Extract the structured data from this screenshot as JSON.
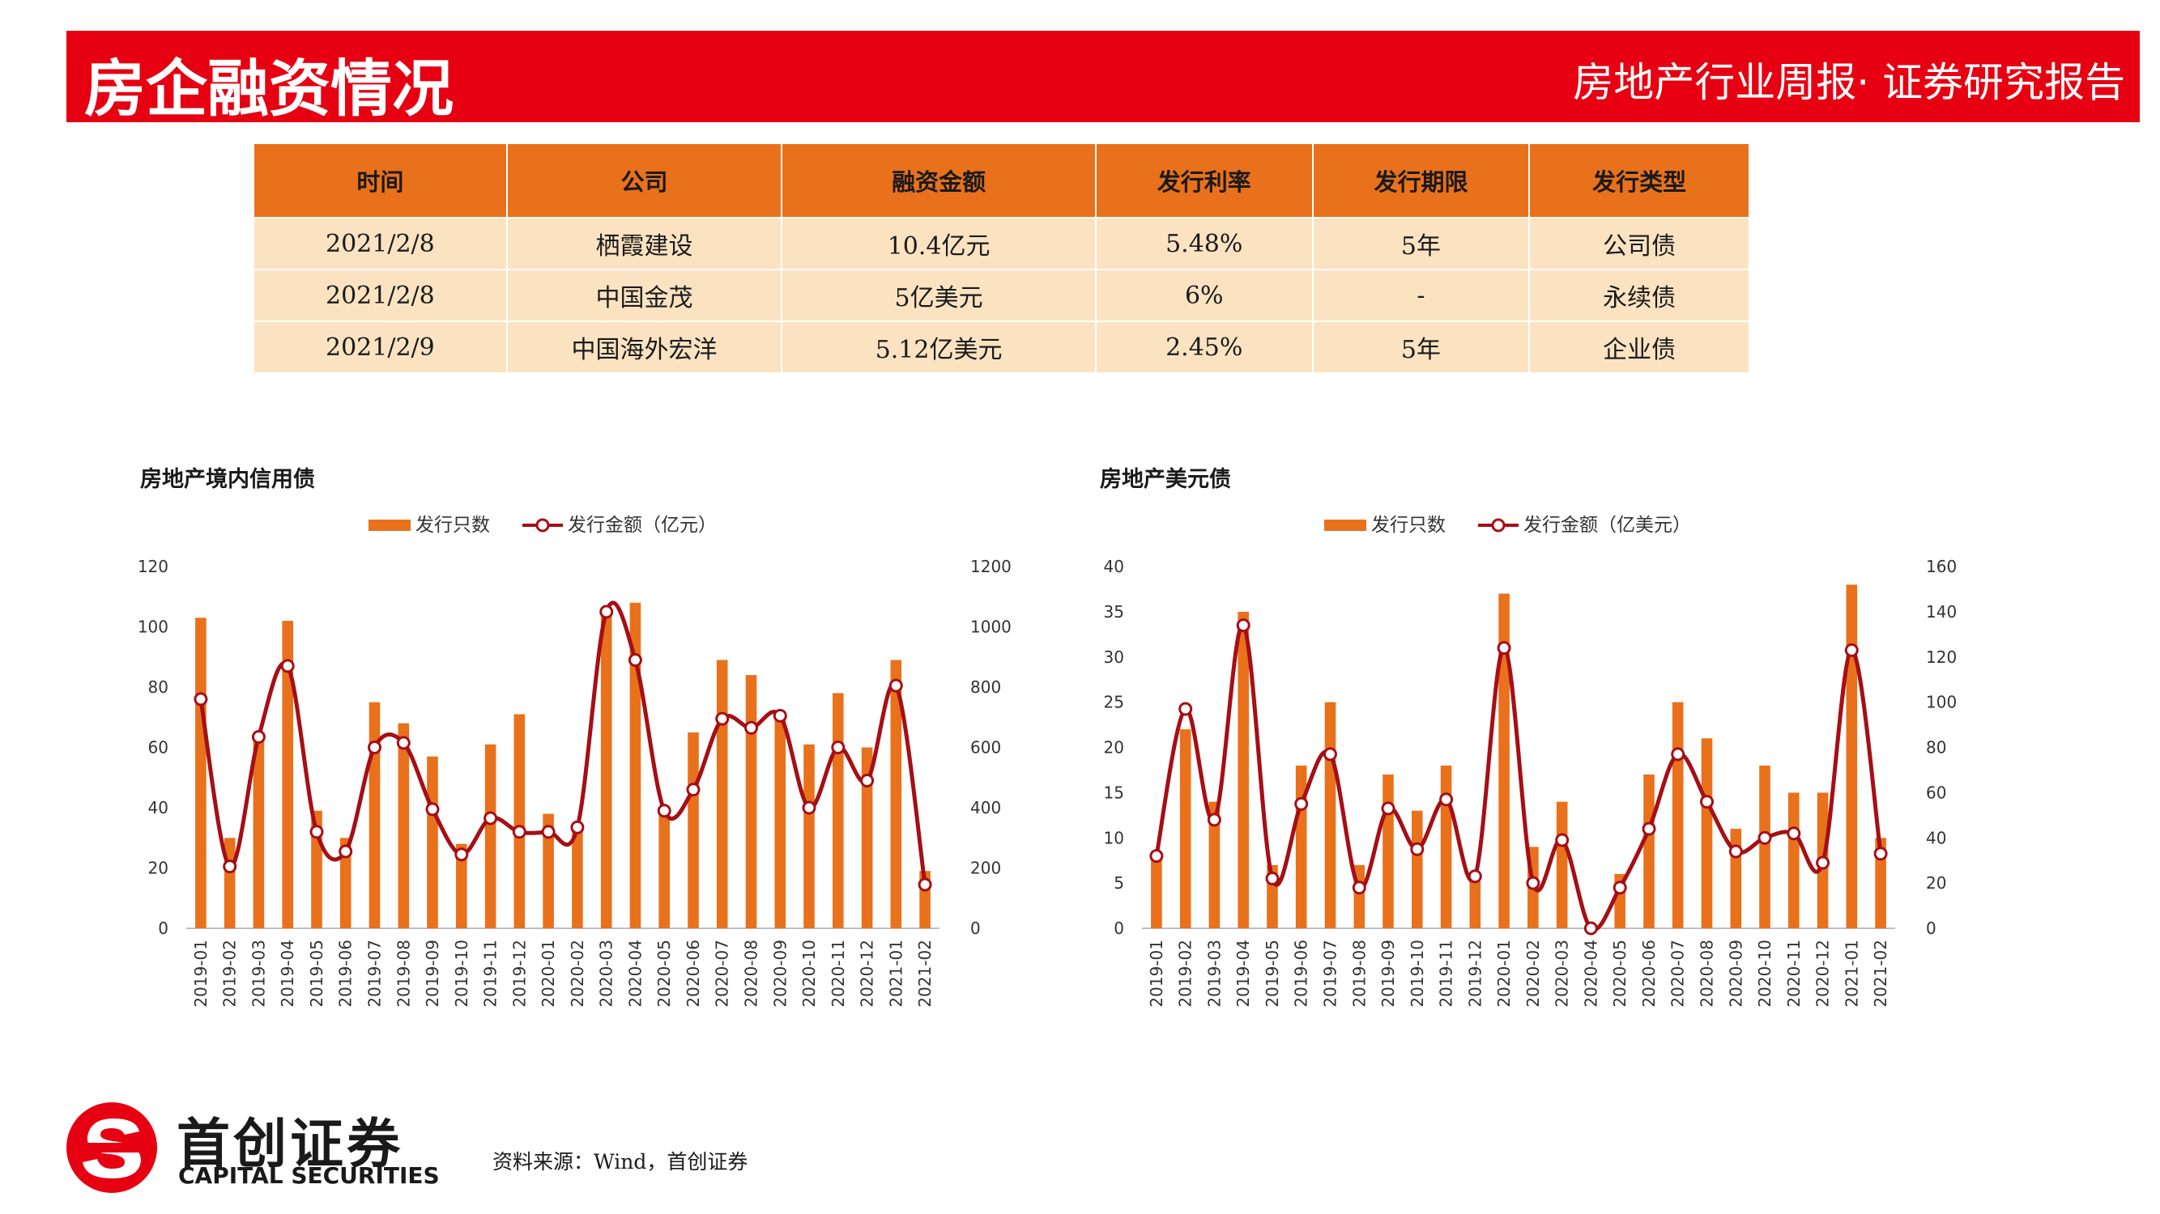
{
  "header": {
    "title": "房企融资情况",
    "subtitle": "房地产行业周报· 证券研究报告",
    "colors": {
      "banner": "#e60012"
    }
  },
  "table": {
    "columns": [
      "时间",
      "公司",
      "融资金额",
      "发行利率",
      "发行期限",
      "发行类型"
    ],
    "rows": [
      [
        "2021/2/8",
        "栖霞建设",
        "10.4亿元",
        "5.48%",
        "5年",
        "公司债"
      ],
      [
        "2021/2/8",
        "中国金茂",
        "5亿美元",
        "6%",
        "-",
        "永续债"
      ],
      [
        "2021/2/9",
        "中国海外宏洋",
        "5.12亿美元",
        "2.45%",
        "5年",
        "企业债"
      ]
    ],
    "colors": {
      "header": "#e9711c",
      "row": "#fbe3c1"
    }
  },
  "chart_data": [
    {
      "type": "bar+line",
      "title": "房地产境内信用债",
      "categories": [
        "2019-01",
        "2019-02",
        "2019-03",
        "2019-04",
        "2019-05",
        "2019-06",
        "2019-07",
        "2019-08",
        "2019-09",
        "2019-10",
        "2019-11",
        "2019-12",
        "2020-01",
        "2020-02",
        "2020-03",
        "2020-04",
        "2020-05",
        "2020-06",
        "2020-07",
        "2020-08",
        "2020-09",
        "2020-10",
        "2020-11",
        "2020-12",
        "2021-01",
        "2021-02"
      ],
      "series": [
        {
          "name": "发行只数",
          "type": "bar",
          "axis": "left",
          "color": "#e9711c",
          "values": [
            103,
            30,
            64,
            102,
            39,
            30,
            75,
            68,
            57,
            28,
            61,
            71,
            38,
            34,
            104,
            108,
            40,
            65,
            89,
            84,
            72,
            61,
            78,
            60,
            89,
            19
          ]
        },
        {
          "name": "发行金额（亿元）",
          "type": "line",
          "axis": "right",
          "color": "#a50f15",
          "values": [
            760,
            205,
            635,
            870,
            320,
            255,
            600,
            615,
            395,
            245,
            365,
            320,
            320,
            335,
            1050,
            890,
            390,
            460,
            695,
            665,
            705,
            400,
            600,
            490,
            805,
            145
          ]
        }
      ],
      "y_left": {
        "min": 0,
        "max": 120,
        "ticks": [
          0,
          20,
          40,
          60,
          80,
          100,
          120
        ]
      },
      "y_right": {
        "min": 0,
        "max": 1200,
        "ticks": [
          0,
          200,
          400,
          600,
          800,
          1000,
          1200
        ]
      },
      "legend": "top-center",
      "grid": false
    },
    {
      "type": "bar+line",
      "title": "房地产美元债",
      "categories": [
        "2019-01",
        "2019-02",
        "2019-03",
        "2019-04",
        "2019-05",
        "2019-06",
        "2019-07",
        "2019-08",
        "2019-09",
        "2019-10",
        "2019-11",
        "2019-12",
        "2020-01",
        "2020-02",
        "2020-03",
        "2020-04",
        "2020-05",
        "2020-06",
        "2020-07",
        "2020-08",
        "2020-09",
        "2020-10",
        "2020-11",
        "2020-12",
        "2021-01",
        "2021-02"
      ],
      "series": [
        {
          "name": "发行只数",
          "type": "bar",
          "axis": "left",
          "color": "#e9711c",
          "values": [
            8,
            22,
            14,
            35,
            7,
            18,
            25,
            7,
            17,
            13,
            18,
            6,
            37,
            9,
            14,
            0,
            6,
            17,
            25,
            21,
            11,
            18,
            15,
            15,
            38,
            10
          ]
        },
        {
          "name": "发行金额（亿美元）",
          "type": "line",
          "axis": "right",
          "color": "#a50f15",
          "values": [
            32,
            97,
            48,
            134,
            22,
            55,
            77,
            18,
            53,
            35,
            57,
            23,
            124,
            20,
            39,
            0,
            18,
            44,
            77,
            56,
            34,
            40,
            42,
            29,
            123,
            33
          ]
        }
      ],
      "y_left": {
        "min": 0,
        "max": 40,
        "ticks": [
          0,
          5,
          10,
          15,
          20,
          25,
          30,
          35,
          40
        ]
      },
      "y_right": {
        "min": 0,
        "max": 160,
        "ticks": [
          0,
          20,
          40,
          60,
          80,
          100,
          120,
          140,
          160
        ]
      },
      "legend": "top-center",
      "grid": false
    }
  ],
  "footer": {
    "logo_cn": "首创证券",
    "logo_en": "CAPITAL SECURITIES",
    "source": "资料来源：Wind，首创证券",
    "colors": {
      "logo": "#e60012"
    }
  }
}
